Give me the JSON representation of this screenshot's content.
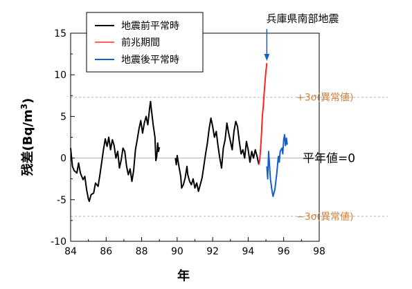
{
  "chart_data": {
    "type": "line",
    "xlabel": "年",
    "ylabel": "残差(Bq/m³)",
    "xlim": [
      84,
      98
    ],
    "ylim": [
      -10,
      15
    ],
    "xticks": [
      "84",
      "86",
      "88",
      "90",
      "92",
      "94",
      "96",
      "98"
    ],
    "yticks": [
      "-10",
      "-5",
      "0",
      "5",
      "10",
      "15"
    ],
    "legend": {
      "placement": "top-center",
      "entries": [
        {
          "label": "地震前平常時",
          "color": "#000000"
        },
        {
          "label": "前兆期間",
          "color": "#ff2020"
        },
        {
          "label": "地震後平常時",
          "color": "#1060d0"
        }
      ]
    },
    "reference_lines": [
      {
        "y": 7.3,
        "label": "+3σ(異常値)",
        "color": "#d08040"
      },
      {
        "y": -7.0,
        "label": "−3σ(異常値)",
        "color": "#d08040"
      },
      {
        "y": 0,
        "label": "平年値=0",
        "color": "#aaaaaa"
      }
    ],
    "annotation": {
      "text": "兵庫県南部地震",
      "x": 95.05
    },
    "series": [
      {
        "name": "地震前平常時",
        "color": "#000000",
        "segments": [
          [
            [
              84.0,
              1.2
            ],
            [
              84.1,
              -1.0
            ],
            [
              84.2,
              -1.5
            ],
            [
              84.35,
              -1.8
            ],
            [
              84.45,
              -0.6
            ],
            [
              84.55,
              -1.8
            ],
            [
              84.7,
              -2.6
            ],
            [
              84.8,
              -2.2
            ],
            [
              84.9,
              -3.8
            ],
            [
              85.0,
              -4.9
            ],
            [
              85.05,
              -5.2
            ],
            [
              85.15,
              -4.4
            ],
            [
              85.3,
              -4.2
            ],
            [
              85.4,
              -3.0
            ],
            [
              85.55,
              -3.4
            ],
            [
              85.65,
              -2.0
            ],
            [
              85.75,
              -0.5
            ],
            [
              85.85,
              1.0
            ],
            [
              85.95,
              2.3
            ],
            [
              86.05,
              1.4
            ],
            [
              86.15,
              2.5
            ],
            [
              86.25,
              1.0
            ],
            [
              86.35,
              2.2
            ],
            [
              86.45,
              1.5
            ],
            [
              86.55,
              0.0
            ],
            [
              86.65,
              0.8
            ],
            [
              86.75,
              -1.2
            ],
            [
              86.85,
              -0.2
            ],
            [
              86.95,
              1.2
            ],
            [
              87.05,
              0.8
            ],
            [
              87.15,
              -1.0
            ],
            [
              87.25,
              -2.0
            ],
            [
              87.35,
              -1.3
            ],
            [
              87.45,
              -2.8
            ],
            [
              87.55,
              -1.5
            ],
            [
              87.65,
              1.0
            ],
            [
              87.75,
              2.2
            ],
            [
              87.85,
              3.5
            ],
            [
              87.95,
              4.5
            ],
            [
              88.05,
              3.0
            ],
            [
              88.15,
              4.2
            ],
            [
              88.25,
              5.0
            ],
            [
              88.35,
              4.0
            ],
            [
              88.45,
              6.0
            ],
            [
              88.5,
              6.8
            ],
            [
              88.55,
              5.8
            ],
            [
              88.65,
              4.0
            ],
            [
              88.75,
              2.5
            ],
            [
              88.8,
              -0.3
            ],
            [
              88.85,
              0.2
            ],
            [
              88.9,
              1.8
            ],
            [
              88.95,
              0.8
            ],
            [
              89.0,
              1.3
            ]
          ],
          [
            [
              89.9,
              0.0
            ],
            [
              89.95,
              -0.8
            ],
            [
              90.0,
              0.3
            ],
            [
              90.1,
              -1.0
            ],
            [
              90.2,
              -2.2
            ],
            [
              90.25,
              -3.6
            ],
            [
              90.35,
              -3.2
            ],
            [
              90.45,
              -2.4
            ],
            [
              90.55,
              -1.0
            ],
            [
              90.6,
              -2.0
            ],
            [
              90.7,
              -2.8
            ],
            [
              90.8,
              -3.2
            ],
            [
              90.9,
              -2.5
            ],
            [
              91.0,
              -3.6
            ],
            [
              91.1,
              -3.0
            ],
            [
              91.2,
              -4.0
            ],
            [
              91.3,
              -3.2
            ],
            [
              91.4,
              -2.4
            ],
            [
              91.5,
              -1.0
            ],
            [
              91.6,
              0.5
            ],
            [
              91.7,
              1.8
            ],
            [
              91.8,
              3.5
            ],
            [
              91.9,
              4.8
            ],
            [
              92.0,
              3.8
            ],
            [
              92.1,
              2.5
            ],
            [
              92.2,
              3.2
            ],
            [
              92.3,
              1.5
            ],
            [
              92.4,
              0.0
            ],
            [
              92.5,
              -1.2
            ],
            [
              92.6,
              1.2
            ],
            [
              92.7,
              2.2
            ],
            [
              92.8,
              4.2
            ],
            [
              92.9,
              3.0
            ],
            [
              93.0,
              2.0
            ],
            [
              93.1,
              1.0
            ],
            [
              93.2,
              3.2
            ],
            [
              93.3,
              4.4
            ],
            [
              93.4,
              3.8
            ],
            [
              93.5,
              2.0
            ],
            [
              93.6,
              0.5
            ],
            [
              93.7,
              1.0
            ],
            [
              93.8,
              0.0
            ],
            [
              93.9,
              2.0
            ],
            [
              94.0,
              1.0
            ],
            [
              94.1,
              -0.5
            ],
            [
              94.2,
              0.8
            ],
            [
              94.3,
              0.0
            ],
            [
              94.4,
              1.0
            ],
            [
              94.5,
              0.2
            ],
            [
              94.6,
              -0.8
            ]
          ]
        ]
      },
      {
        "name": "前兆期間",
        "color": "#ff2020",
        "segments": [
          [
            [
              94.6,
              -0.8
            ],
            [
              94.65,
              -0.2
            ],
            [
              94.7,
              1.2
            ],
            [
              94.75,
              3.0
            ],
            [
              94.8,
              5.0
            ],
            [
              94.85,
              6.2
            ],
            [
              94.9,
              7.8
            ],
            [
              94.95,
              9.2
            ],
            [
              95.0,
              10.5
            ],
            [
              95.05,
              11.4
            ]
          ]
        ]
      },
      {
        "name": "地震後平常時",
        "color": "#1060d0",
        "segments": [
          [
            [
              95.05,
              -1.0
            ],
            [
              95.1,
              -2.5
            ],
            [
              95.15,
              0.8
            ],
            [
              95.2,
              -0.8
            ],
            [
              95.25,
              -2.5
            ],
            [
              95.35,
              -4.0
            ],
            [
              95.4,
              -4.6
            ],
            [
              95.5,
              -3.8
            ],
            [
              95.6,
              -2.0
            ],
            [
              95.7,
              0.2
            ],
            [
              95.75,
              -0.5
            ],
            [
              95.8,
              0.8
            ],
            [
              95.9,
              1.2
            ],
            [
              95.95,
              0.5
            ],
            [
              96.0,
              2.2
            ],
            [
              96.05,
              2.8
            ],
            [
              96.1,
              1.5
            ],
            [
              96.15,
              2.4
            ],
            [
              96.2,
              1.6
            ]
          ]
        ]
      }
    ]
  }
}
